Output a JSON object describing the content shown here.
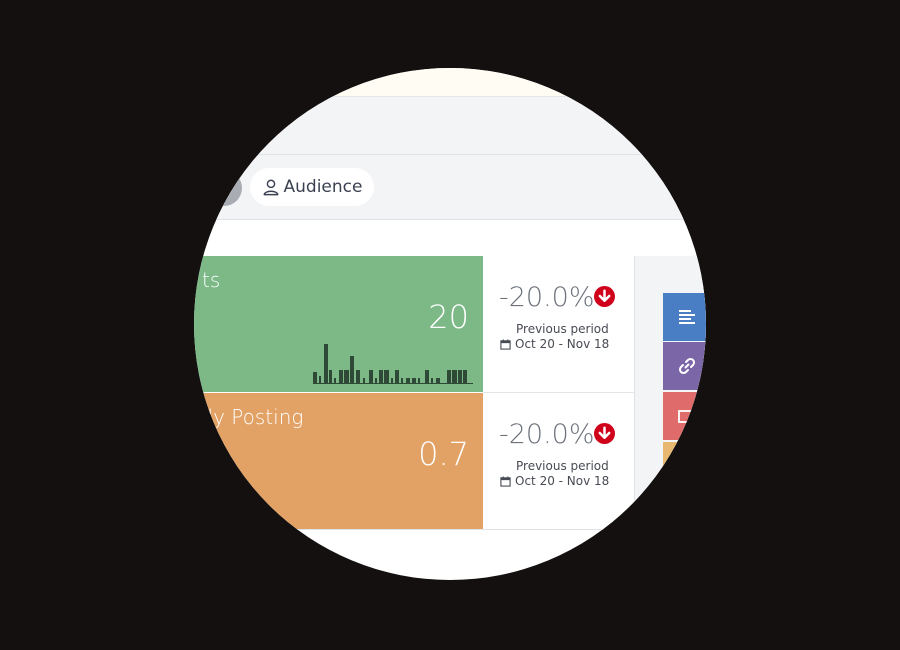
{
  "tabs": {
    "audience_label": "Audience"
  },
  "metrics": [
    {
      "title": "ts",
      "value": "20",
      "color": "#7cb987",
      "change": "-20.0%",
      "change_direction": "down",
      "previous_label": "Previous period",
      "previous_range": "Oct 20 - Nov 18"
    },
    {
      "title": "ily Posting",
      "value": "0.7",
      "color": "#e3a265",
      "change": "-20.0%",
      "change_direction": "down",
      "previous_label": "Previous period",
      "previous_range": "Oct 20 - Nov 18"
    }
  ],
  "side_buttons": [
    {
      "icon": "align-left-icon",
      "color": "#4a7ec4"
    },
    {
      "icon": "link-icon",
      "color": "#7b66a8"
    },
    {
      "icon": "rectangle-icon",
      "color": "#df6b6b"
    },
    {
      "icon": "blank",
      "color": "#e9b870"
    }
  ]
}
